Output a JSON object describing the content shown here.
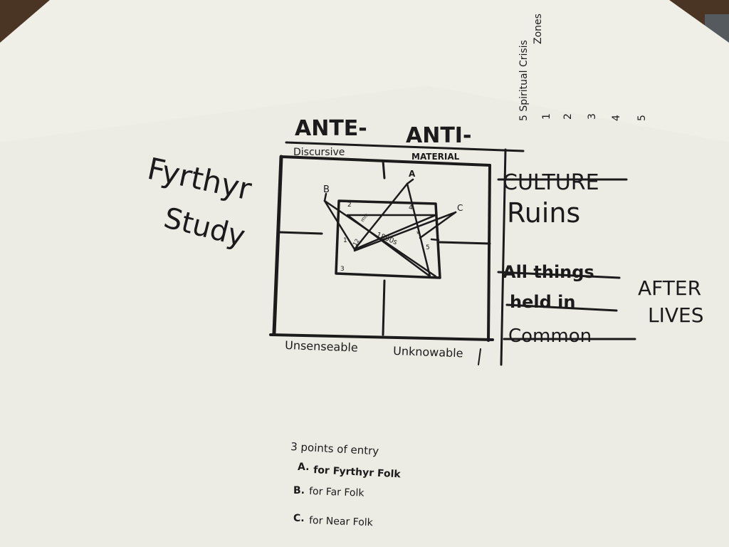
{
  "diagram": {
    "title": {
      "line1": "Fyrthyr",
      "line2": "Study"
    },
    "top_labels": {
      "ante": "ANTE-",
      "anti": "ANTI-"
    },
    "sub_labels": {
      "discursive": "Discursive",
      "material": "MATERIAL"
    },
    "bottom_labels": {
      "unsenseable": "Unsenseable",
      "unknowable": "Unknowable"
    },
    "zones": {
      "heading_line1": "5 Spiritual Crisis",
      "heading_line2": "Zones",
      "numbers": [
        "1",
        "2",
        "3",
        "4",
        "5"
      ]
    },
    "right_column": {
      "struck_culture": "CULTURE",
      "ruins": "Ruins",
      "struck_lines": [
        "All things",
        "held in",
        "Common"
      ],
      "after_lives": {
        "line1": "AFTER",
        "line2": "LIVES"
      }
    },
    "inner_figure": {
      "point_labels": {
        "a": "A",
        "b": "B",
        "c": "C"
      },
      "corner_numbers": [
        "2",
        "4",
        "1",
        "5",
        "3"
      ],
      "center_label": "1800s",
      "side_label_left": "12",
      "small_marks": [
        "mix",
        "4"
      ]
    },
    "entry_points": {
      "heading": "3 points of entry",
      "items": [
        {
          "marker": "A.",
          "text": "for Fyrthyr Folk"
        },
        {
          "marker": "B.",
          "text": "for Far Folk"
        },
        {
          "marker": "C.",
          "text": "for Near Folk"
        }
      ]
    }
  }
}
